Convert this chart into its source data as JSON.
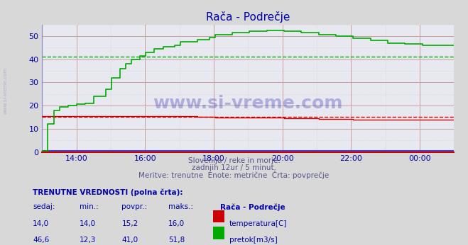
{
  "title": "Rača - Podrečje",
  "bg_color": "#d8d8d8",
  "plot_bg_color": "#e8e8f0",
  "grid_color_major": "#c8a0a0",
  "grid_color_minor": "#d8c8c8",
  "x_ticks_hours": [
    14,
    16,
    18,
    20,
    22,
    24
  ],
  "x_tick_labels": [
    "14:00",
    "16:00",
    "18:00",
    "20:00",
    "22:00",
    "00:00"
  ],
  "ylim": [
    0,
    55
  ],
  "yticks": [
    0,
    10,
    20,
    30,
    40,
    50
  ],
  "temp_avg": 15.2,
  "flow_avg": 41.0,
  "temp_color": "#cc0000",
  "flow_color": "#00aa00",
  "blue_line_color": "#4444cc",
  "subtitle1": "Slovenija / reke in morje.",
  "subtitle2": "zadnjih 12ur / 5 minut.",
  "subtitle3": "Meritve: trenutne  Enote: metrične  Črta: povprečje",
  "table_header": "TRENUTNE VREDNOSTI (polna črta):",
  "col_headers": [
    "sedaj:",
    "min.:",
    "povpr.:",
    "maks.:",
    "Rača - Podrečje"
  ],
  "temp_row": [
    "14,0",
    "14,0",
    "15,2",
    "16,0",
    "temperatura[C]"
  ],
  "flow_row": [
    "46,6",
    "12,3",
    "41,0",
    "51,8",
    "pretok[m3/s]"
  ],
  "watermark": "www.si-vreme.com",
  "left_label": "www.si-vreme.com"
}
